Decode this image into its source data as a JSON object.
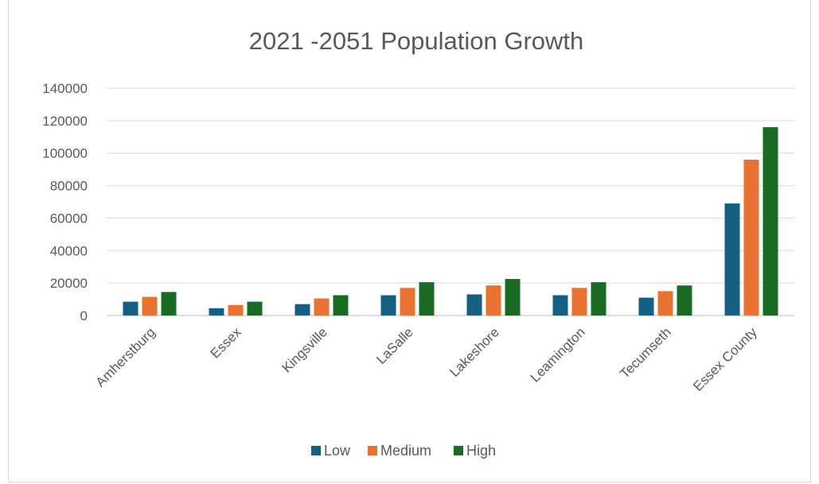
{
  "chart_data": {
    "type": "bar",
    "title": "2021 -2051 Population Growth",
    "categories": [
      "Amherstburg",
      "Essex",
      "Kingsville",
      "LaSalle",
      "Lakeshore",
      "Leamington",
      "Tecumseth",
      "Essex County"
    ],
    "series": [
      {
        "name": "Low",
        "color": "#156082",
        "values": [
          8500,
          4500,
          7000,
          12500,
          13000,
          12500,
          11000,
          69000
        ]
      },
      {
        "name": "Medium",
        "color": "#e97132",
        "values": [
          11500,
          6500,
          10500,
          17000,
          18500,
          17000,
          15000,
          96000
        ]
      },
      {
        "name": "High",
        "color": "#196b24",
        "values": [
          14500,
          8500,
          12500,
          20500,
          22500,
          20500,
          18500,
          116000
        ]
      }
    ],
    "ylim": [
      0,
      140000
    ],
    "yticks": [
      "0",
      "20000",
      "40000",
      "60000",
      "80000",
      "100000",
      "120000",
      "140000"
    ],
    "grid": true,
    "legend_position": "bottom"
  }
}
